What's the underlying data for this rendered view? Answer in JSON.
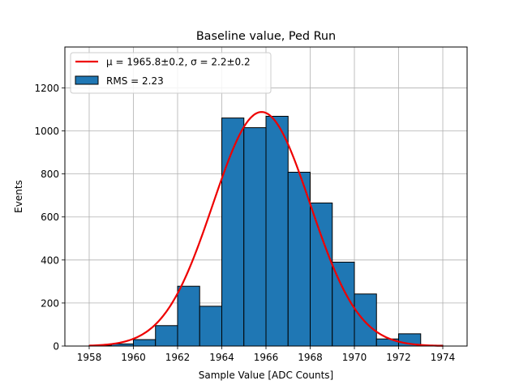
{
  "chart_data": {
    "type": "bar",
    "title": "Baseline value, Ped Run",
    "xlabel": "Sample Value [ADC Counts]",
    "ylabel": "Events",
    "xlim": [
      1956.9,
      1975.1
    ],
    "ylim": [
      0,
      1390
    ],
    "xticks": [
      1958,
      1960,
      1962,
      1964,
      1966,
      1968,
      1970,
      1972,
      1974
    ],
    "yticks": [
      0,
      200,
      400,
      600,
      800,
      1000,
      1200
    ],
    "grid": true,
    "legend_position": "top-left",
    "bin_width": 1,
    "bins": [
      {
        "left": 1958,
        "value": 3
      },
      {
        "left": 1959,
        "value": 10
      },
      {
        "left": 1960,
        "value": 30
      },
      {
        "left": 1961,
        "value": 95
      },
      {
        "left": 1962,
        "value": 278
      },
      {
        "left": 1963,
        "value": 185
      },
      {
        "left": 1964,
        "value": 1060
      },
      {
        "left": 1965,
        "value": 1015
      },
      {
        "left": 1966,
        "value": 1068
      },
      {
        "left": 1967,
        "value": 808
      },
      {
        "left": 1968,
        "value": 665
      },
      {
        "left": 1969,
        "value": 390
      },
      {
        "left": 1970,
        "value": 242
      },
      {
        "left": 1971,
        "value": 33
      },
      {
        "left": 1972,
        "value": 57
      },
      {
        "left": 1973,
        "value": 4
      }
    ],
    "fit": {
      "label": "μ = 1965.8±0.2, σ = 2.2±0.2",
      "mu": 1965.8,
      "sigma": 2.2,
      "amplitude": 1088,
      "range": [
        1958,
        1974
      ],
      "color": "#ee0000"
    },
    "histogram": {
      "label": "RMS = 2.23",
      "fill": "#1f77b4",
      "edge": "#000000"
    }
  }
}
